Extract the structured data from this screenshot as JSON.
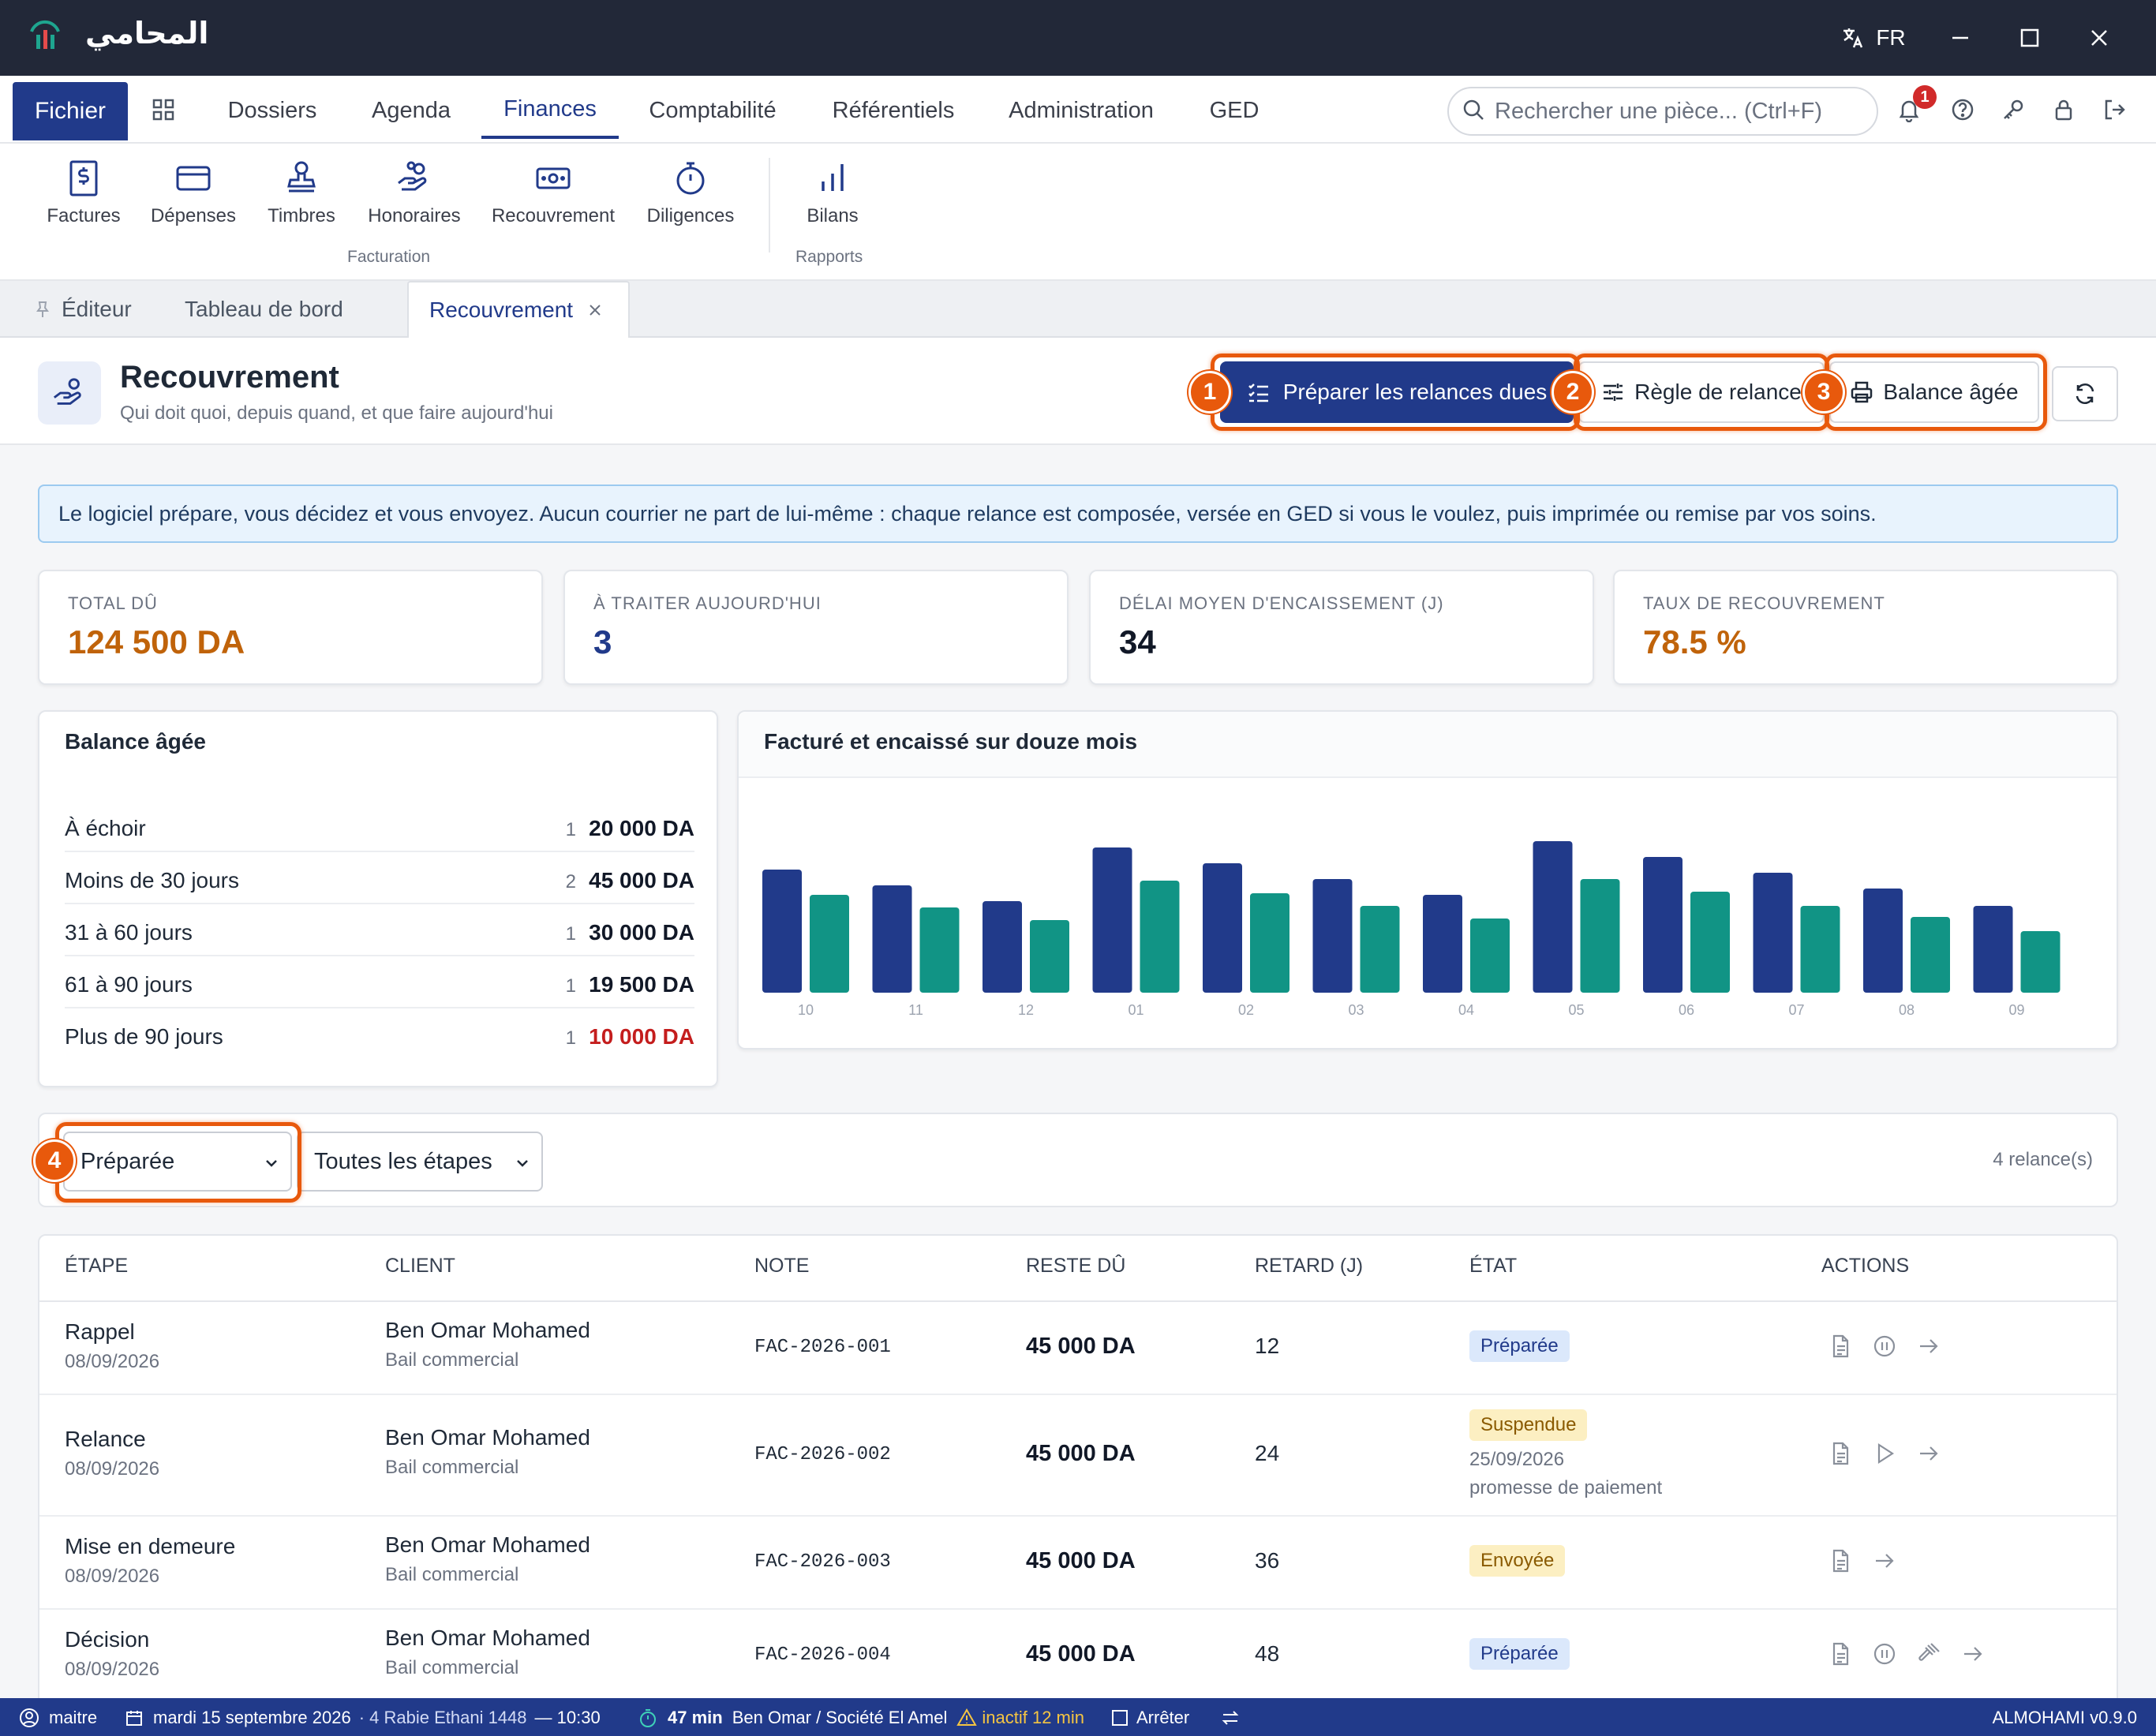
{
  "app": {
    "name": "المحامي",
    "language": "FR"
  },
  "menu": {
    "file": "Fichier",
    "tabs": [
      "Dossiers",
      "Agenda",
      "Finances",
      "Comptabilité",
      "Référentiels",
      "Administration",
      "GED"
    ],
    "active_tab": "Finances"
  },
  "search": {
    "placeholder": "Rechercher une pièce... (Ctrl+F)"
  },
  "notifications": {
    "count": "1"
  },
  "ribbon": {
    "items": [
      "Factures",
      "Dépenses",
      "Timbres",
      "Honoraires",
      "Recouvrement",
      "Diligences",
      "Bilans"
    ],
    "groups": {
      "facturation": "Facturation",
      "rapports": "Rapports"
    }
  },
  "doc_tabs": {
    "editor": "Éditeur",
    "dashboard": "Tableau de bord",
    "active": "Recouvrement"
  },
  "page": {
    "title": "Recouvrement",
    "subtitle": "Qui doit quoi, depuis quand, et que faire aujourd'hui",
    "buttons": {
      "prepare": "Préparer les relances dues",
      "rule": "Règle de relance",
      "balance": "Balance âgée"
    },
    "markers": [
      "1",
      "2",
      "3",
      "4"
    ]
  },
  "banner": "Le logiciel prépare, vous décidez et vous envoyez. Aucun courrier ne part de lui-même : chaque relance est composée, versée en GED si vous le voulez, puis imprimée ou remise par vos soins.",
  "kpis": [
    {
      "label": "TOTAL DÛ",
      "value": "124 500 DA",
      "color": "#c0630a"
    },
    {
      "label": "À TRAITER AUJOURD'HUI",
      "value": "3",
      "color": "#213a8a"
    },
    {
      "label": "DÉLAI MOYEN D'ENCAISSEMENT (J)",
      "value": "34",
      "color": "#111827"
    },
    {
      "label": "TAUX DE RECOUVREMENT",
      "value": "78.5 %",
      "color": "#c0630a"
    }
  ],
  "balance": {
    "title": "Balance âgée",
    "rows": [
      {
        "label": "À échoir",
        "count": "1",
        "amount": "20 000 DA"
      },
      {
        "label": "Moins de 30 jours",
        "count": "2",
        "amount": "45 000 DA"
      },
      {
        "label": "31 à 60 jours",
        "count": "1",
        "amount": "30 000 DA"
      },
      {
        "label": "61 à 90 jours",
        "count": "1",
        "amount": "19 500 DA"
      },
      {
        "label": "Plus de 90 jours",
        "count": "1",
        "amount": "10 000 DA"
      }
    ],
    "overdue_color": "#c41d1d"
  },
  "chart_title": "Facturé et encaissé sur douze mois",
  "chart_data": {
    "type": "bar",
    "title": "Facturé et encaissé sur douze mois",
    "categories": [
      "10",
      "11",
      "12",
      "01",
      "02",
      "03",
      "04",
      "05",
      "06",
      "07",
      "08",
      "09"
    ],
    "series": [
      {
        "values": [
          78,
          68,
          58,
          92,
          82,
          72,
          62,
          96,
          86,
          76,
          66,
          55
        ],
        "color": "#213a8a"
      },
      {
        "values": [
          62,
          54,
          46,
          71,
          63,
          55,
          47,
          72,
          64,
          55,
          48,
          39
        ],
        "color": "#119485"
      }
    ],
    "ylim": [
      0,
      100
    ],
    "grid": false,
    "legend": "none"
  },
  "filters": {
    "state": "Préparée",
    "stage": "Toutes les étapes",
    "count": "4 relance(s)"
  },
  "table": {
    "headers": [
      "ÉTAPE",
      "CLIENT",
      "NOTE",
      "RESTE DÛ",
      "RETARD (J)",
      "ÉTAT",
      "ACTIONS"
    ],
    "rows": [
      {
        "stage": "Rappel",
        "date": "08/09/2026",
        "client": "Ben Omar Mohamed",
        "matter": "Bail commercial",
        "note": "FAC-2026-001",
        "due": "45 000 DA",
        "delay": "12",
        "state": "Préparée",
        "state_date": "",
        "state_note": "",
        "actions": [
          "document-icon",
          "pause-icon",
          "arrow-right-icon"
        ]
      },
      {
        "stage": "Relance",
        "date": "08/09/2026",
        "client": "Ben Omar Mohamed",
        "matter": "Bail commercial",
        "note": "FAC-2026-002",
        "due": "45 000 DA",
        "delay": "24",
        "state": "Suspendue",
        "state_date": "25/09/2026",
        "state_note": "promesse de paiement",
        "actions": [
          "document-icon",
          "play-icon",
          "arrow-right-icon"
        ]
      },
      {
        "stage": "Mise en demeure",
        "date": "08/09/2026",
        "client": "Ben Omar Mohamed",
        "matter": "Bail commercial",
        "note": "FAC-2026-003",
        "due": "45 000 DA",
        "delay": "36",
        "state": "Envoyée",
        "state_date": "",
        "state_note": "",
        "actions": [
          "document-icon",
          "arrow-right-icon"
        ]
      },
      {
        "stage": "Décision",
        "date": "08/09/2026",
        "client": "Ben Omar Mohamed",
        "matter": "Bail commercial",
        "note": "FAC-2026-004",
        "due": "45 000 DA",
        "delay": "48",
        "state": "Préparée",
        "state_date": "",
        "state_note": "",
        "actions": [
          "document-icon",
          "pause-icon",
          "gavel-icon",
          "arrow-right-icon"
        ]
      }
    ]
  },
  "statusbar": {
    "user": "maitre",
    "date": "mardi 15 septembre 2026",
    "hijri": "· 4 Rabie Ethani 1448",
    "time": "— 10:30",
    "timer": "47 min",
    "matter": "Ben Omar / Société El Amel",
    "inactive": "inactif 12 min",
    "stop": "Arrêter",
    "version": "ALMOHAMI v0.9.0"
  }
}
